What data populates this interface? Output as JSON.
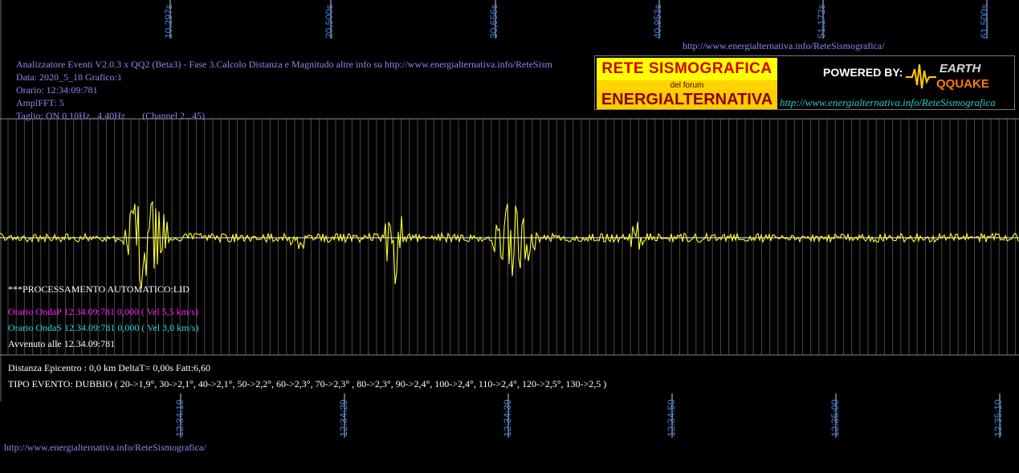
{
  "top_time_labels": [
    "10,297s",
    "20,500s",
    "30,656s",
    "40,953s",
    "51,172s",
    "61,500s"
  ],
  "bottom_time_labels": [
    "12:34:19",
    "12:34:29",
    "12:34:39",
    "12:34:50",
    "12:35:00",
    "12:35:10"
  ],
  "header_url": "http://www.energialternativa.info/ReteSismografica/",
  "info": {
    "line1": "Analizzatore Eventi V2.0.3 x QQ2 (Beta3) - Fase 3.Calcolo Distanza e Magnitudo altre info su http://www.energialternativa.info/ReteSism",
    "line2": "Data: 2020_5_18 Grafico:1",
    "line3": "Orario: 12:34:09:781",
    "line4": "AmplFFT: 5",
    "line5": "Taglio: ON 0,10Hz...4,40Hz       (Channel 2...45)"
  },
  "logo": {
    "rete": "RETE SISMOGRAFICA",
    "forum": "del forum",
    "energ": "ENERGIALTERNATIVA",
    "powered": "POWERED BY:",
    "earth": "EARTH",
    "quake": "QQUAKE",
    "url": "http://www.energialternativa.info/ReteSismografica"
  },
  "processing": {
    "title": "***PROCESSAMENTO AUTOMATICO:LID",
    "onda_p": "Orario OndaP 12.34.09:781  0,000 ( Vel 5,5 km/s)",
    "onda_s": "Orario OndaS 12.34.09:781  0,000 ( Vel 3,0 km/s)",
    "avvenuto": "Avvenuto alle 12.34.09:781"
  },
  "result": {
    "distanza": "Distanza Epicentro : 0,0 km DeltaT= 0,00s  Fatt:6,60",
    "tipo": "TIPO EVENTO: DUBBIO ( 20->1,9°, 30->2,1°, 40->2,1°, 50->2,2°, 60->2,3°, 70->2,3° , 80->2,3°, 90->2,4°, 100->2,4°, 110->2,4°, 120->2,5°, 130->2,5 )"
  },
  "footer_url": "http://www.energialternativa.info/ReteSismografica/",
  "colors": {
    "trace": "#ffff33",
    "baseline": "#ffffff",
    "grid": "#555555",
    "info_text": "#8a8af0",
    "time_label": "#3f7fe0",
    "onda_p": "#ff22ff",
    "onda_s": "#22dddd"
  }
}
